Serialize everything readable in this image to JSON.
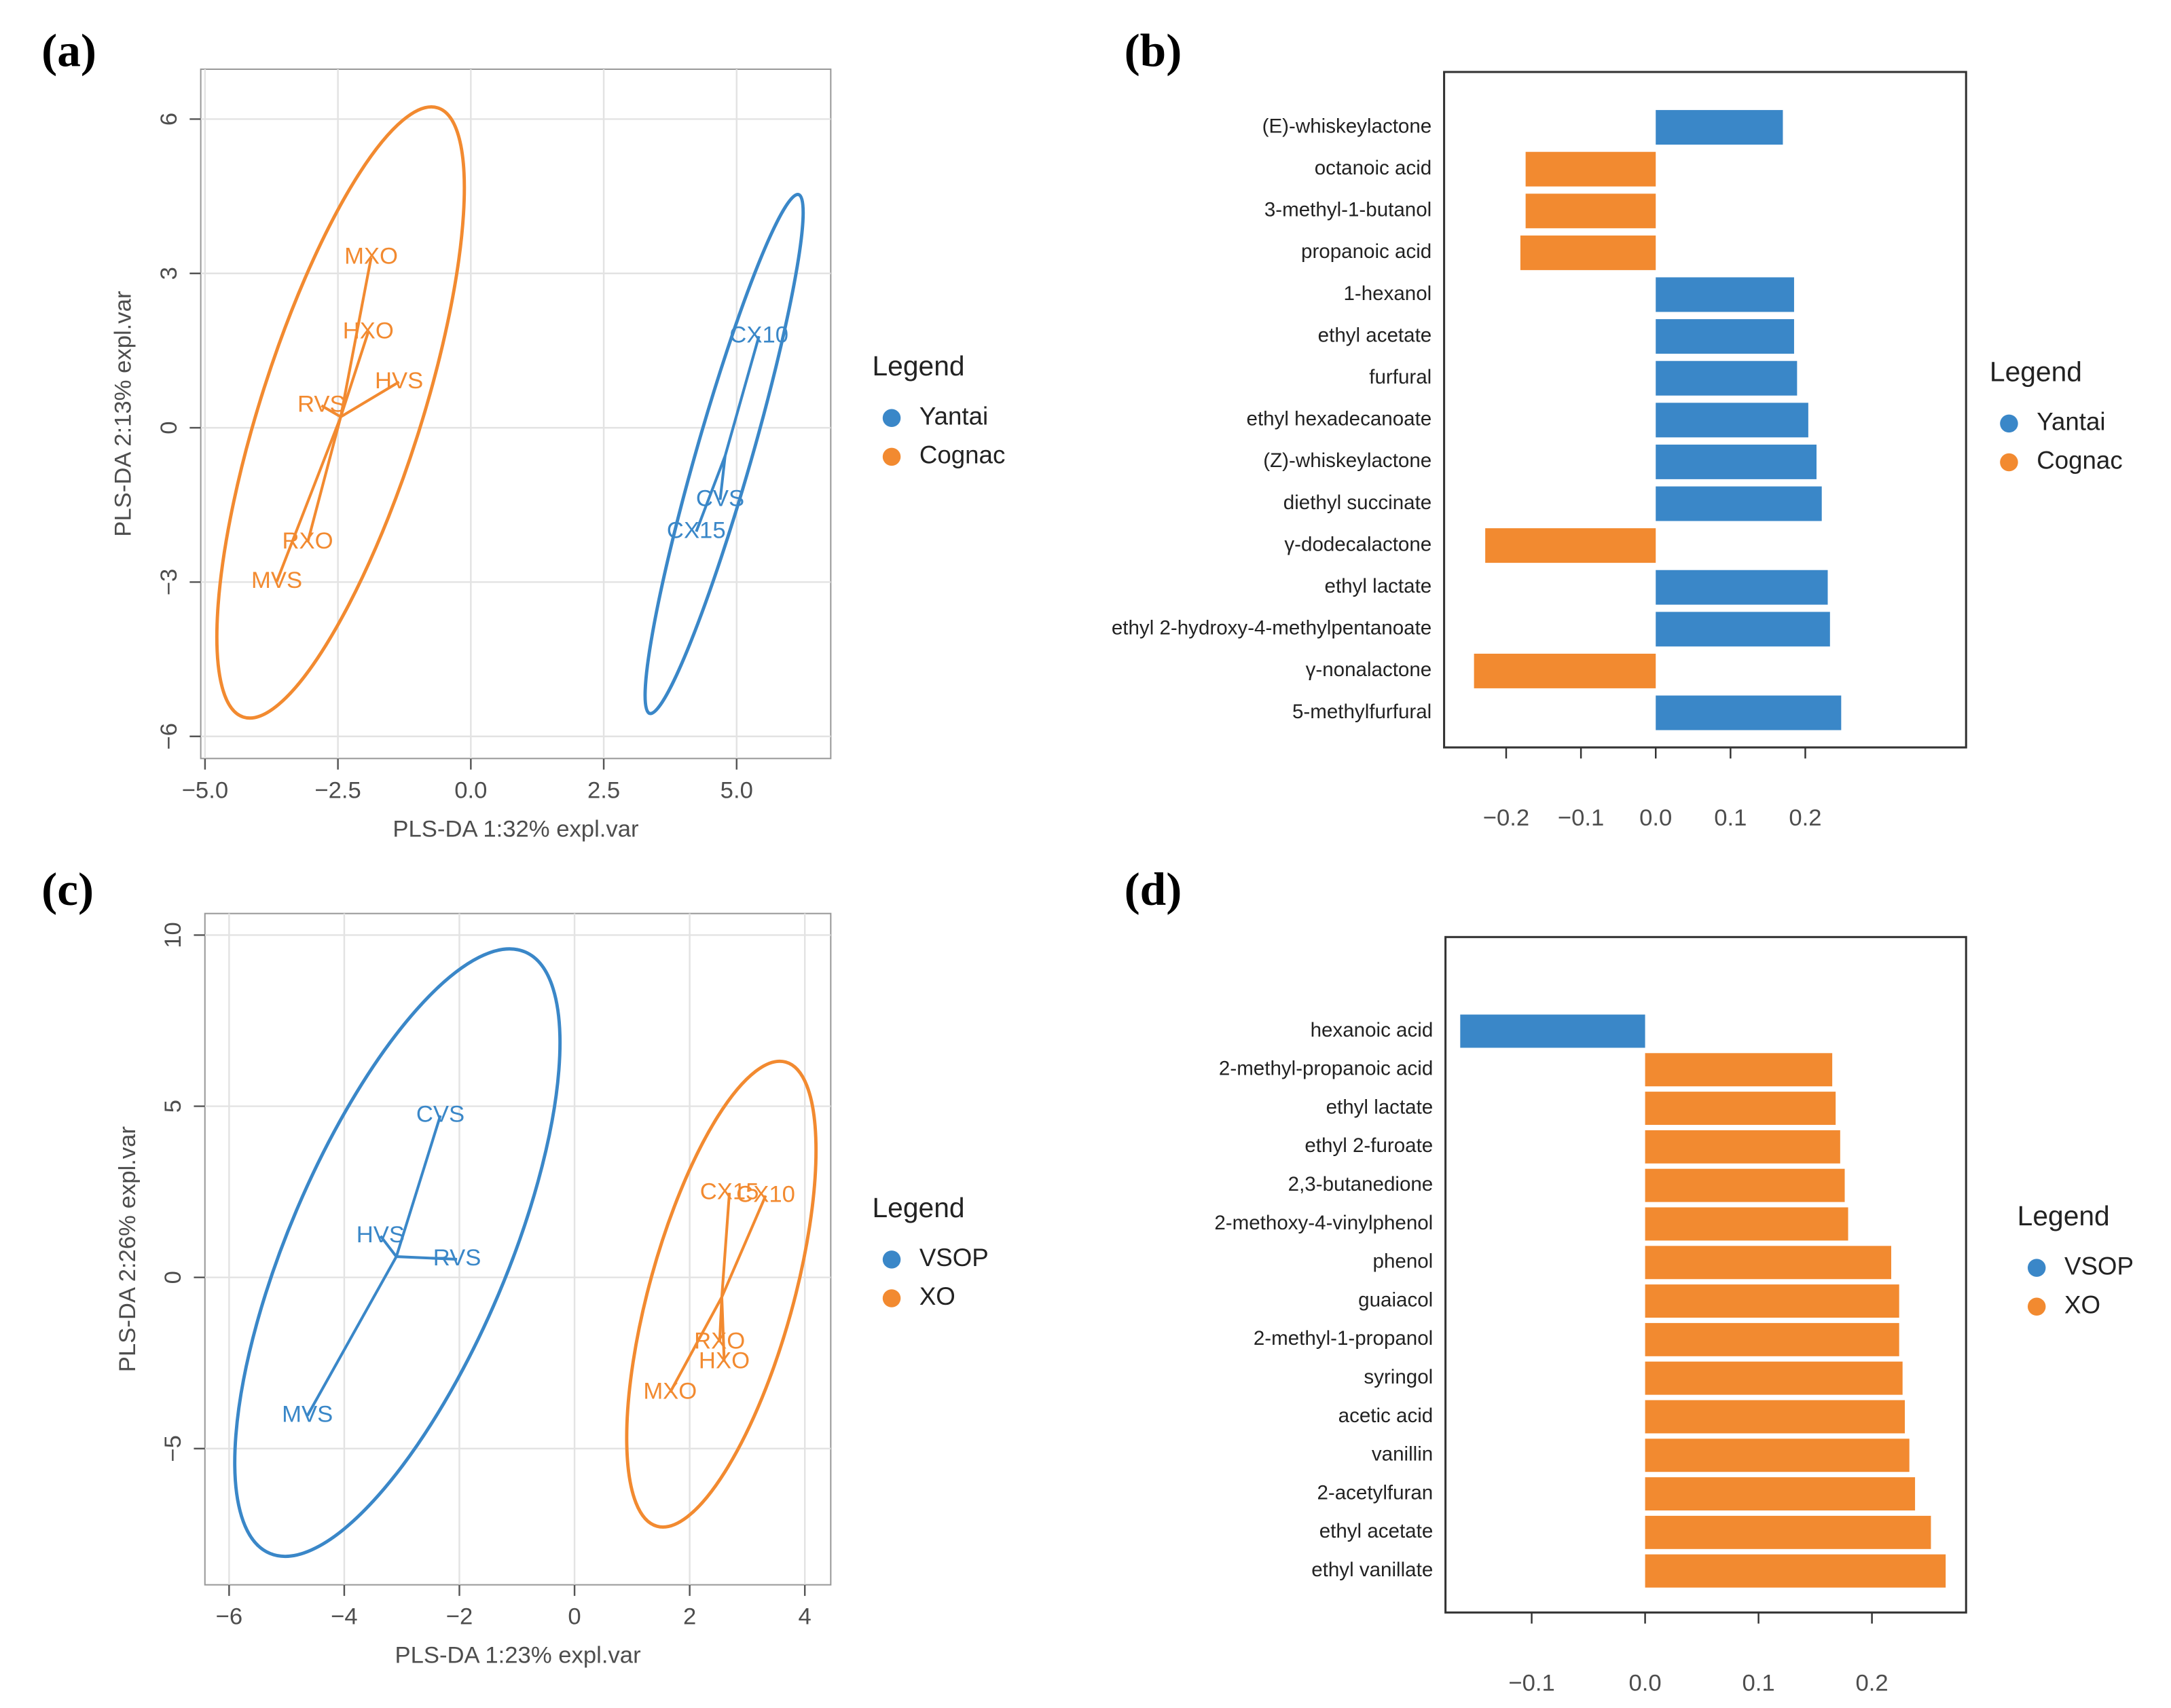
{
  "chart_data": [
    {
      "type": "scatter",
      "panel_label": "(a)",
      "xlabel": "PLS-DA 1:32% expl.var",
      "ylabel": "PLS-DA 2:13% expl.var",
      "legend_title": "Legend",
      "grid": true,
      "xlim": [
        -5.08,
        6.77
      ],
      "ylim": [
        -6.43,
        6.97
      ],
      "xticks": [
        {
          "value": -5,
          "label": "−5.0"
        },
        {
          "value": -2.5,
          "label": "−2.5"
        },
        {
          "value": 0,
          "label": "0.0"
        },
        2.5,
        {
          "value": 5,
          "label": "5.0"
        }
      ],
      "yticks": [
        {
          "value": -6,
          "label": "−6"
        },
        {
          "value": -3,
          "label": "−3"
        },
        0,
        3,
        6
      ],
      "series": [
        {
          "name": "Yantai",
          "color": "#3a87c8",
          "labels": [
            "CX10",
            "CVS",
            "CX15"
          ],
          "x": [
            5.42,
            4.69,
            4.24
          ],
          "values": [
            1.78,
            -1.4,
            -2.02
          ]
        },
        {
          "name": "Cognac",
          "color": "#f28a30",
          "labels": [
            "MXO",
            "HXO",
            "HVS",
            "RVS",
            "RXO",
            "MVS"
          ],
          "x": [
            -1.875,
            -1.93,
            -1.35,
            -2.81,
            -3.07,
            -3.65
          ],
          "values": [
            3.31,
            1.86,
            0.89,
            0.43,
            -2.23,
            -2.99
          ]
        }
      ]
    },
    {
      "type": "bar",
      "panel_label": "(b)",
      "legend_title": "Legend",
      "xlim": [
        -0.283,
        0.415
      ],
      "xticks": [
        {
          "value": -0.2,
          "label": "−0.2"
        },
        {
          "value": -0.1,
          "label": "−0.1"
        },
        {
          "value": 0,
          "label": "0.0"
        },
        0.1,
        0.2
      ],
      "legend": [
        {
          "name": "Yantai",
          "color": "#3a87c8"
        },
        {
          "name": "Cognac",
          "color": "#f28a30"
        }
      ],
      "categories": [
        "(E)-whiskeylactone",
        "octanoic acid",
        "3-methyl-1-butanol",
        "propanoic acid",
        "1-hexanol",
        "ethyl acetate",
        "furfural",
        "ethyl hexadecanoate",
        "(Z)-whiskeylactone",
        "diethyl succinate",
        "γ-dodecalactone",
        "ethyl lactate",
        "ethyl 2-hydroxy-4-methylpentanoate",
        "γ-nonalactone",
        "5-methylfurfural"
      ],
      "values": [
        0.17,
        -0.174,
        -0.174,
        -0.181,
        0.185,
        0.185,
        0.189,
        0.204,
        0.215,
        0.222,
        -0.228,
        0.23,
        0.233,
        -0.243,
        0.248
      ],
      "colors": [
        "#3a87c8",
        "#f28a30",
        "#f28a30",
        "#f28a30",
        "#3a87c8",
        "#3a87c8",
        "#3a87c8",
        "#3a87c8",
        "#3a87c8",
        "#3a87c8",
        "#f28a30",
        "#3a87c8",
        "#3a87c8",
        "#f28a30",
        "#3a87c8"
      ]
    },
    {
      "type": "scatter",
      "panel_label": "(c)",
      "xlabel": "PLS-DA 1:23% expl.var",
      "ylabel": "PLS-DA 2:26% expl.var",
      "legend_title": "Legend",
      "grid": true,
      "xlim": [
        -6.42,
        4.45
      ],
      "ylim": [
        -8.98,
        10.63
      ],
      "xticks": [
        {
          "value": -6,
          "label": "−6"
        },
        {
          "value": -4,
          "label": "−4"
        },
        {
          "value": -2,
          "label": "−2"
        },
        0,
        2,
        4
      ],
      "yticks": [
        {
          "value": -5,
          "label": "−5"
        },
        0,
        5,
        10
      ],
      "series": [
        {
          "name": "VSOP",
          "color": "#3a87c8",
          "labels": [
            "CVS",
            "HVS",
            "RVS",
            "MVS"
          ],
          "x": [
            -2.33,
            -3.37,
            -2.04,
            -4.64
          ],
          "values": [
            4.73,
            1.21,
            0.53,
            -4.04
          ]
        },
        {
          "name": "XO",
          "color": "#f28a30",
          "labels": [
            "CX15",
            "CX10",
            "RXO",
            "HXO",
            "MXO"
          ],
          "x": [
            2.69,
            3.32,
            2.52,
            2.6,
            1.66
          ],
          "values": [
            2.47,
            2.39,
            -1.9,
            -2.47,
            -3.36
          ]
        }
      ]
    },
    {
      "type": "bar",
      "panel_label": "(d)",
      "legend_title": "Legend",
      "xlim": [
        -0.176,
        0.283
      ],
      "xticks": [
        {
          "value": -0.1,
          "label": "−0.1"
        },
        {
          "value": 0,
          "label": "0.0"
        },
        0.1,
        0.2
      ],
      "legend": [
        {
          "name": "VSOP",
          "color": "#3a87c8"
        },
        {
          "name": "XO",
          "color": "#f28a30"
        }
      ],
      "categories": [
        "hexanoic acid",
        "2-methyl-propanoic acid",
        "ethyl lactate",
        "ethyl 2-furoate",
        "2,3-butanedione",
        "2-methoxy-4-vinylphenol",
        "phenol",
        "guaiacol",
        "2-methyl-1-propanol",
        "syringol",
        "acetic acid",
        "vanillin",
        "2-acetylfuran",
        "ethyl acetate",
        "ethyl vanillate"
      ],
      "values": [
        -0.163,
        0.165,
        0.168,
        0.172,
        0.176,
        0.179,
        0.217,
        0.224,
        0.224,
        0.227,
        0.229,
        0.233,
        0.238,
        0.252,
        0.265
      ],
      "colors": [
        "#3a87c8",
        "#f28a30",
        "#f28a30",
        "#f28a30",
        "#f28a30",
        "#f28a30",
        "#f28a30",
        "#f28a30",
        "#f28a30",
        "#f28a30",
        "#f28a30",
        "#f28a30",
        "#f28a30",
        "#f28a30",
        "#f28a30"
      ]
    }
  ]
}
